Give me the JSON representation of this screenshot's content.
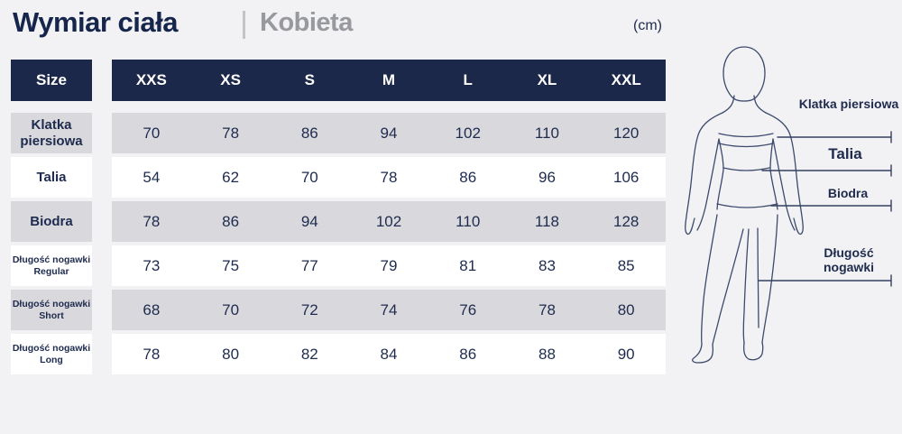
{
  "header": {
    "title": "Wymiar ciała",
    "subtitle": "Kobieta",
    "unit": "(cm)"
  },
  "chart_data": {
    "type": "table",
    "title": "Wymiar ciała — Kobieta (cm)",
    "corner_label": "Size",
    "columns": [
      "XXS",
      "XS",
      "S",
      "M",
      "L",
      "XL",
      "XXL"
    ],
    "rows": [
      {
        "label": "Klatka piersiowa",
        "label_lines": [
          "Klatka",
          "piersiowa"
        ],
        "values": [
          70,
          78,
          86,
          94,
          102,
          110,
          120
        ]
      },
      {
        "label": "Talia",
        "label_lines": [
          "Talia"
        ],
        "values": [
          54,
          62,
          70,
          78,
          86,
          96,
          106
        ]
      },
      {
        "label": "Biodra",
        "label_lines": [
          "Biodra"
        ],
        "values": [
          78,
          86,
          94,
          102,
          110,
          118,
          128
        ]
      },
      {
        "label": "Długość nogawki Regular",
        "label_lines": [
          "Długość nogawki",
          "Regular"
        ],
        "values": [
          73,
          75,
          77,
          79,
          81,
          83,
          85
        ]
      },
      {
        "label": "Długość nogawki Short",
        "label_lines": [
          "Długość nogawki",
          "Short"
        ],
        "values": [
          68,
          70,
          72,
          74,
          76,
          78,
          80
        ]
      },
      {
        "label": "Długość nogawki Long",
        "label_lines": [
          "Długość nogawki",
          "Long"
        ],
        "values": [
          78,
          80,
          82,
          84,
          86,
          88,
          90
        ]
      }
    ]
  },
  "figure": {
    "illustration": "woman-body-outline",
    "annotations": [
      "Klatka piersiowa",
      "Talia",
      "Biodra",
      "Długość nogawki"
    ]
  },
  "colors": {
    "navy": "#1c2849",
    "row_gray": "#d9d9dd",
    "row_white": "#ffffff",
    "background": "#f2f2f4",
    "subtitle_gray": "#97999e",
    "figure_line": "#3d4a6d"
  }
}
